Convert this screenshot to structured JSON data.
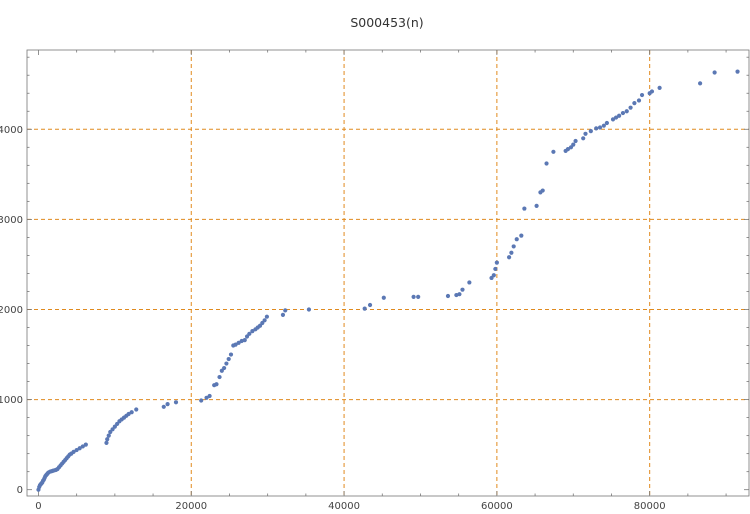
{
  "chart_data": {
    "type": "scatter",
    "title": "S000453(n)",
    "xlabel": "",
    "ylabel": "",
    "xlim": [
      -1500,
      93000
    ],
    "ylim": [
      -70,
      4880
    ],
    "xticks": [
      0,
      20000,
      40000,
      60000,
      80000
    ],
    "yticks": [
      0,
      1000,
      2000,
      3000,
      4000
    ],
    "xtick_labels": [
      "0",
      "20000",
      "40000",
      "60000",
      "80000"
    ],
    "ytick_labels": [
      "0",
      "1000",
      "2000",
      "3000",
      "4000"
    ],
    "grid": {
      "x": [
        20000,
        40000,
        60000,
        80000
      ],
      "y": [
        1000,
        2000,
        3000,
        4000
      ],
      "style": "dashed",
      "color": "#e08a1e"
    },
    "point_color": "#5b78b4",
    "series": [
      {
        "x": [
          0,
          100,
          200,
          300,
          400,
          500,
          600,
          700,
          800,
          900,
          1000,
          1100,
          1200,
          1300,
          1500,
          1700,
          1900,
          2100,
          2300,
          2500,
          2700,
          2900,
          3100,
          3300,
          3500,
          3700,
          3900,
          4100,
          4300,
          4600,
          5000,
          5400,
          5800,
          6200,
          8900,
          9000,
          9200,
          9400,
          9700,
          10000,
          10300,
          10600,
          10900,
          11200,
          11500,
          11800,
          12200,
          12800,
          16400,
          16900,
          18000,
          21300,
          22000,
          22400,
          23000,
          23300,
          23700,
          24000,
          24300,
          24600,
          24900,
          25200,
          25500,
          25800,
          26200,
          26600,
          27000,
          27300,
          27600,
          28000,
          28400,
          28700,
          29000,
          29300,
          29600,
          29900,
          32000,
          32300,
          35400,
          42700,
          43400,
          45200,
          49100,
          49700,
          53600,
          54700,
          55100,
          55500,
          56400,
          59300,
          59600,
          59800,
          60000,
          61600,
          61900,
          62200,
          62600,
          63200,
          63600,
          65200,
          65700,
          66000,
          66500,
          67400,
          69000,
          69300,
          69700,
          70000,
          70300,
          71300,
          71600,
          72300,
          73000,
          73500,
          74000,
          74400,
          75200,
          75600,
          76000,
          76500,
          77000,
          77500,
          78000,
          78600,
          79000,
          80000,
          80300,
          81300,
          86600,
          88500,
          91500
        ],
        "y": [
          0,
          30,
          50,
          60,
          70,
          80,
          100,
          110,
          130,
          150,
          160,
          170,
          180,
          190,
          200,
          205,
          210,
          215,
          220,
          230,
          250,
          270,
          290,
          310,
          330,
          350,
          370,
          390,
          400,
          420,
          440,
          460,
          480,
          500,
          520,
          560,
          600,
          640,
          670,
          700,
          730,
          760,
          780,
          800,
          820,
          840,
          860,
          890,
          920,
          950,
          970,
          990,
          1020,
          1040,
          1160,
          1170,
          1250,
          1320,
          1350,
          1400,
          1450,
          1500,
          1600,
          1610,
          1630,
          1650,
          1660,
          1700,
          1730,
          1760,
          1780,
          1800,
          1820,
          1850,
          1880,
          1920,
          1940,
          1990,
          2000,
          2010,
          2050,
          2130,
          2140,
          2140,
          2150,
          2160,
          2170,
          2220,
          2300,
          2350,
          2380,
          2450,
          2520,
          2580,
          2630,
          2700,
          2780,
          2820,
          3120,
          3150,
          3300,
          3320,
          3620,
          3750,
          3760,
          3780,
          3800,
          3830,
          3870,
          3900,
          3950,
          3980,
          4010,
          4020,
          4040,
          4070,
          4110,
          4130,
          4150,
          4180,
          4200,
          4240,
          4290,
          4320,
          4380,
          4400,
          4420,
          4460,
          4510,
          4630,
          4640
        ]
      }
    ]
  }
}
